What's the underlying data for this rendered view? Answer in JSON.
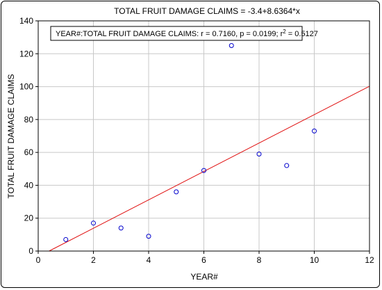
{
  "chart_data": {
    "type": "scatter",
    "title": "TOTAL FRUIT DAMAGE CLAIMS = -3.4+8.6364*x",
    "xlabel": "YEAR#",
    "ylabel": "TOTAL FRUIT DAMAGE CLAIMS",
    "xlim": [
      0,
      12
    ],
    "ylim": [
      0,
      140
    ],
    "xticks": [
      0,
      2,
      4,
      6,
      8,
      10,
      12
    ],
    "yticks": [
      0,
      20,
      40,
      60,
      80,
      100,
      120,
      140
    ],
    "grid": true,
    "points": [
      {
        "x": 1,
        "y": 7
      },
      {
        "x": 2,
        "y": 17
      },
      {
        "x": 3,
        "y": 14
      },
      {
        "x": 4,
        "y": 9
      },
      {
        "x": 5,
        "y": 36
      },
      {
        "x": 6,
        "y": 49
      },
      {
        "x": 7,
        "y": 125
      },
      {
        "x": 8,
        "y": 59
      },
      {
        "x": 9,
        "y": 52
      },
      {
        "x": 10,
        "y": 73
      }
    ],
    "regression": {
      "intercept": -3.4,
      "slope": 8.6364
    },
    "annotation": {
      "prefix": "YEAR#:TOTAL FRUIT DAMAGE CLAIMS:   r = 0.7160, p = 0.0199; r",
      "sup": "2",
      "suffix": " = 0.5127"
    },
    "colors": {
      "points": "#0000cc",
      "line": "#e01010",
      "grid": "#c8c8c8"
    }
  }
}
